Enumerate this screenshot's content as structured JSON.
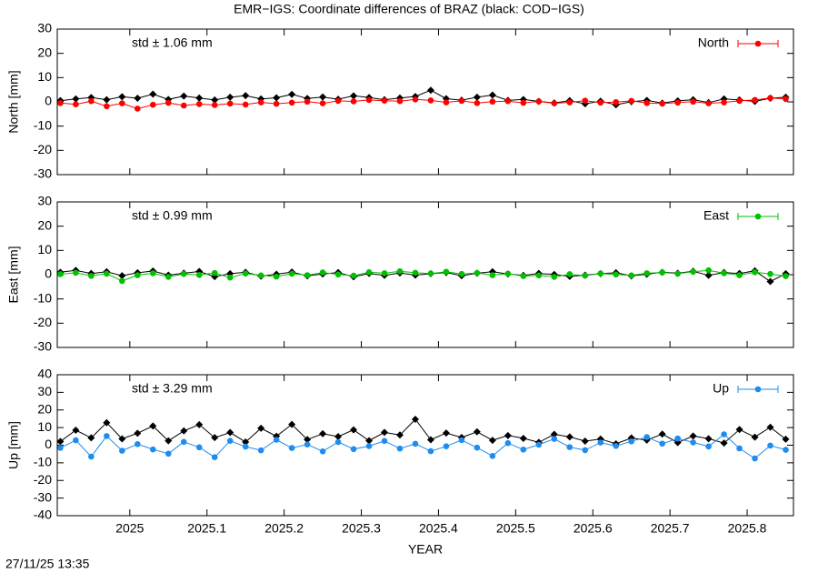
{
  "title": "EMR−IGS: Coordinate differences of BRAZ (black: COD−IGS)",
  "timestamp": "27/11/25 13:35",
  "chart_data": [
    {
      "type": "line",
      "ylabel": "North [mm]",
      "annotation": "std ± 1.06 mm",
      "xlim": [
        2024.906,
        2025.86
      ],
      "xticks": [
        2025,
        2025.1,
        2025.2,
        2025.3,
        2025.4,
        2025.5,
        2025.6,
        2025.7,
        2025.8
      ],
      "ylim": [
        -30,
        30
      ],
      "yticks": [
        -30,
        -20,
        -10,
        0,
        10,
        20,
        30
      ],
      "x": [
        2024.91,
        2024.93,
        2024.95,
        2024.97,
        2024.99,
        2025.01,
        2025.03,
        2025.05,
        2025.07,
        2025.09,
        2025.11,
        2025.13,
        2025.15,
        2025.17,
        2025.19,
        2025.21,
        2025.23,
        2025.25,
        2025.27,
        2025.29,
        2025.31,
        2025.33,
        2025.35,
        2025.37,
        2025.39,
        2025.41,
        2025.43,
        2025.45,
        2025.47,
        2025.49,
        2025.51,
        2025.53,
        2025.55,
        2025.57,
        2025.59,
        2025.61,
        2025.63,
        2025.65,
        2025.67,
        2025.69,
        2025.71,
        2025.73,
        2025.75,
        2025.77,
        2025.79,
        2025.81,
        2025.83,
        2025.85
      ],
      "series": [
        {
          "color": "#000000",
          "marker": "diamond",
          "values": [
            0.5,
            1.2,
            1.8,
            0.9,
            2.1,
            1.5,
            3.2,
            1.0,
            2.4,
            1.6,
            0.8,
            1.9,
            2.6,
            1.2,
            1.7,
            3.1,
            1.4,
            2.0,
            1.1,
            2.5,
            1.8,
            0.9,
            1.6,
            2.2,
            4.8,
            1.3,
            0.7,
            1.9,
            2.8,
            0.6,
            1.0,
            0.2,
            -0.4,
            0.5,
            -0.8,
            0.3,
            -1.2,
            0.1,
            0.6,
            -0.5,
            0.4,
            0.9,
            -0.3,
            1.2,
            0.8,
            0.2,
            1.5,
            1.9
          ]
        },
        {
          "name": "North",
          "color": "#ff0000",
          "marker": "circle",
          "values": [
            -0.5,
            -1.0,
            0.3,
            -1.8,
            -0.6,
            -2.8,
            -1.2,
            -0.4,
            -1.5,
            -0.9,
            -1.3,
            -0.7,
            -1.1,
            -0.2,
            -0.8,
            -0.3,
            0.1,
            -0.6,
            0.4,
            0.2,
            0.8,
            0.5,
            0.3,
            1.0,
            0.6,
            -0.2,
            0.4,
            -0.5,
            0.1,
            0.3,
            -0.4,
            0.2,
            -0.6,
            -0.2,
            0.5,
            -0.3,
            -0.1,
            0.4,
            -0.5,
            -0.7,
            -0.3,
            0.1,
            -0.6,
            -0.2,
            0.4,
            0.8,
            1.6,
            1.2
          ]
        }
      ]
    },
    {
      "type": "line",
      "ylabel": "East [mm]",
      "annotation": "std ± 0.99 mm",
      "xlim": [
        2024.906,
        2025.86
      ],
      "xticks": [
        2025,
        2025.1,
        2025.2,
        2025.3,
        2025.4,
        2025.5,
        2025.6,
        2025.7,
        2025.8
      ],
      "ylim": [
        -30,
        30
      ],
      "yticks": [
        -30,
        -20,
        -10,
        0,
        10,
        20,
        30
      ],
      "x": [
        2024.91,
        2024.93,
        2024.95,
        2024.97,
        2024.99,
        2025.01,
        2025.03,
        2025.05,
        2025.07,
        2025.09,
        2025.11,
        2025.13,
        2025.15,
        2025.17,
        2025.19,
        2025.21,
        2025.23,
        2025.25,
        2025.27,
        2025.29,
        2025.31,
        2025.33,
        2025.35,
        2025.37,
        2025.39,
        2025.41,
        2025.43,
        2025.45,
        2025.47,
        2025.49,
        2025.51,
        2025.53,
        2025.55,
        2025.57,
        2025.59,
        2025.61,
        2025.63,
        2025.65,
        2025.67,
        2025.69,
        2025.71,
        2025.73,
        2025.75,
        2025.77,
        2025.79,
        2025.81,
        2025.83,
        2025.85
      ],
      "series": [
        {
          "color": "#000000",
          "marker": "diamond",
          "values": [
            1.0,
            1.8,
            0.5,
            1.2,
            -0.4,
            0.8,
            1.5,
            -0.2,
            0.6,
            1.3,
            -0.8,
            0.4,
            1.0,
            -0.6,
            0.2,
            1.1,
            -0.5,
            0.3,
            0.9,
            -0.9,
            0.5,
            -0.3,
            0.7,
            -0.2,
            0.4,
            0.9,
            -0.4,
            0.6,
            1.2,
            0.3,
            -0.3,
            0.5,
            0.1,
            -0.7,
            -0.2,
            0.4,
            0.8,
            -0.5,
            0.2,
            1.0,
            0.6,
            1.4,
            -0.3,
            0.9,
            0.5,
            1.6,
            -2.8,
            0.4
          ]
        },
        {
          "name": "East",
          "color": "#00c000",
          "marker": "circle",
          "values": [
            0.2,
            0.8,
            -0.5,
            0.4,
            -2.6,
            -0.2,
            0.6,
            -0.9,
            0.3,
            -0.1,
            0.7,
            -1.2,
            0.5,
            -0.3,
            -0.8,
            0.4,
            -0.2,
            0.9,
            0.1,
            -0.4,
            1.0,
            0.6,
            1.4,
            0.8,
            0.5,
            1.2,
            0.3,
            0.7,
            -0.2,
            0.4,
            -0.6,
            -0.3,
            -0.9,
            0.2,
            -0.4,
            0.5,
            0.1,
            -0.3,
            0.6,
            0.9,
            0.4,
            1.2,
            1.8,
            0.6,
            -0.2,
            1.0,
            0.3,
            -0.6
          ]
        }
      ]
    },
    {
      "type": "line",
      "ylabel": "Up [mm]",
      "annotation": "std ± 3.29 mm",
      "xlabel": "YEAR",
      "xlim": [
        2024.906,
        2025.86
      ],
      "xticks": [
        2025,
        2025.1,
        2025.2,
        2025.3,
        2025.4,
        2025.5,
        2025.6,
        2025.7,
        2025.8
      ],
      "ylim": [
        -40,
        40
      ],
      "yticks": [
        -40,
        -30,
        -20,
        -10,
        0,
        10,
        20,
        30,
        40
      ],
      "x": [
        2024.91,
        2024.93,
        2024.95,
        2024.97,
        2024.99,
        2025.01,
        2025.03,
        2025.05,
        2025.07,
        2025.09,
        2025.11,
        2025.13,
        2025.15,
        2025.17,
        2025.19,
        2025.21,
        2025.23,
        2025.25,
        2025.27,
        2025.29,
        2025.31,
        2025.33,
        2025.35,
        2025.37,
        2025.39,
        2025.41,
        2025.43,
        2025.45,
        2025.47,
        2025.49,
        2025.51,
        2025.53,
        2025.55,
        2025.57,
        2025.59,
        2025.61,
        2025.63,
        2025.65,
        2025.67,
        2025.69,
        2025.71,
        2025.73,
        2025.75,
        2025.77,
        2025.79,
        2025.81,
        2025.83,
        2025.85
      ],
      "series": [
        {
          "color": "#000000",
          "marker": "diamond",
          "values": [
            2.1,
            8.5,
            4.2,
            12.8,
            3.6,
            6.8,
            10.9,
            2.5,
            8.1,
            11.7,
            4.3,
            7.2,
            1.8,
            9.6,
            5.1,
            11.8,
            3.2,
            6.5,
            4.9,
            8.7,
            2.6,
            7.3,
            5.8,
            14.7,
            3.1,
            6.9,
            4.4,
            7.6,
            2.8,
            5.5,
            3.9,
            1.6,
            6.2,
            4.7,
            2.3,
            3.5,
            0.8,
            4.1,
            2.9,
            6.3,
            1.5,
            5.2,
            3.7,
            1.2,
            8.9,
            4.6,
            10.2,
            3.4
          ]
        },
        {
          "name": "Up",
          "color": "#1e8cf0",
          "marker": "circle",
          "values": [
            -1.5,
            2.8,
            -6.5,
            5.2,
            -3.1,
            0.6,
            -2.4,
            -4.8,
            1.9,
            -1.2,
            -6.8,
            2.5,
            -0.8,
            -2.9,
            3.1,
            -1.6,
            0.4,
            -3.5,
            1.8,
            -2.2,
            -0.5,
            2.4,
            -1.9,
            0.8,
            -3.4,
            -0.6,
            2.9,
            -1.4,
            -6.1,
            1.2,
            -2.5,
            0.3,
            3.6,
            -1.1,
            -2.8,
            1.5,
            -0.4,
            2.2,
            4.6,
            0.9,
            3.8,
            1.6,
            -0.7,
            6.2,
            -1.8,
            -7.5,
            -0.2,
            -2.6
          ]
        }
      ]
    }
  ]
}
